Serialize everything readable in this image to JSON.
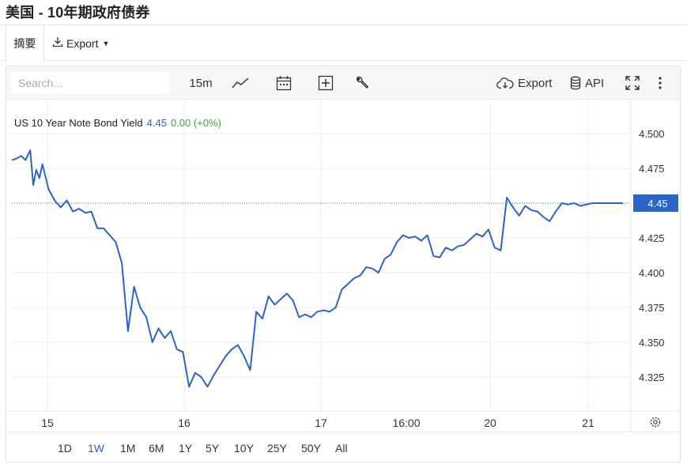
{
  "header": {
    "title": "美国 - 10年期政府债券"
  },
  "tabs": {
    "summary": "摘要",
    "export": "Export"
  },
  "toolbar": {
    "search_placeholder": "Search...",
    "interval": "15m",
    "export_label": "Export",
    "api_label": "API"
  },
  "legend": {
    "name": "US 10 Year Note Bond Yield",
    "value": "4.45",
    "change": "0.00 (+0%)"
  },
  "price_tag": "4.45",
  "ranges": [
    "1D",
    "1W",
    "1M",
    "6M",
    "1Y",
    "5Y",
    "10Y",
    "25Y",
    "50Y",
    "All"
  ],
  "active_range": "1W",
  "colors": {
    "line": "#2a64c8",
    "accent": "#2a64c8",
    "change_positive": "#2fae2f",
    "price_tag_bg": "#2a64c8"
  },
  "icons": [
    "line-chart-icon",
    "calendar-icon",
    "plus-box-icon",
    "wrench-icon",
    "cloud-download-icon",
    "database-icon",
    "fullscreen-icon",
    "kebab-menu-icon",
    "gear-icon",
    "download-icon"
  ],
  "chart_data": {
    "type": "line",
    "title": "",
    "xlabel": "",
    "ylabel": "",
    "ylim": [
      4.3,
      4.52
    ],
    "yticks": [
      "4.500",
      "4.475",
      "4.450",
      "4.425",
      "4.400",
      "4.375",
      "4.350",
      "4.325"
    ],
    "xticks": [
      "15",
      "16",
      "17",
      "16:00",
      "20",
      "21"
    ],
    "grid": true,
    "reference_line": 4.45,
    "series": [
      {
        "name": "US 10 Year Note Bond Yield",
        "t": [
          0,
          0.3,
          0.6,
          0.9,
          1.2,
          1.4,
          1.6,
          1.8,
          2.0,
          2.4,
          2.8,
          3.2,
          3.6,
          4.0,
          4.4,
          4.8,
          5.2,
          5.6,
          6.0,
          6.4,
          6.8,
          7.2,
          7.6,
          8.0,
          8.4,
          8.8,
          9.2,
          9.6,
          10.0,
          10.4,
          10.8,
          11.2,
          11.6,
          12.0,
          12.4,
          12.8,
          13.2,
          13.6,
          14.0,
          14.4,
          14.8,
          15.2,
          15.6,
          16.0,
          16.4,
          16.8,
          17.2,
          17.6,
          18.0,
          18.4,
          18.8,
          19.2,
          19.6,
          20.0,
          20.4,
          20.8,
          21.2,
          21.6,
          22.0,
          22.4,
          22.8,
          23.2,
          23.6,
          24.0,
          24.4,
          24.8,
          25.2,
          25.6,
          26.0,
          26.4,
          26.8,
          27.2,
          27.6,
          28.0,
          28.4,
          28.8,
          29.2,
          29.6,
          30.0,
          30.4,
          30.8,
          31.2,
          31.6,
          32.0,
          32.4,
          32.8,
          33.2,
          33.6,
          34.0,
          34.4,
          34.8,
          35.2,
          35.6,
          36.0,
          36.4,
          36.8,
          37.2,
          37.6,
          38.0,
          38.4,
          38.8,
          39.2,
          39.6,
          40.0
        ],
        "values": [
          4.481,
          4.482,
          4.484,
          4.481,
          4.488,
          4.463,
          4.474,
          4.468,
          4.478,
          4.46,
          4.452,
          4.447,
          4.452,
          4.444,
          4.446,
          4.443,
          4.444,
          4.432,
          4.432,
          4.427,
          4.422,
          4.407,
          4.358,
          4.39,
          4.375,
          4.368,
          4.35,
          4.36,
          4.353,
          4.358,
          4.345,
          4.343,
          4.318,
          4.328,
          4.325,
          4.318,
          4.326,
          4.333,
          4.34,
          4.345,
          4.348,
          4.34,
          4.33,
          4.372,
          4.367,
          4.383,
          4.377,
          4.381,
          4.385,
          4.38,
          4.368,
          4.37,
          4.368,
          4.372,
          4.373,
          4.372,
          4.375,
          4.388,
          4.392,
          4.396,
          4.398,
          4.404,
          4.403,
          4.4,
          4.41,
          4.413,
          4.422,
          4.427,
          4.425,
          4.426,
          4.423,
          4.427,
          4.412,
          4.411,
          4.418,
          4.416,
          4.419,
          4.42,
          4.424,
          4.428,
          4.426,
          4.431,
          4.418,
          4.416,
          4.454,
          4.447,
          4.441,
          4.448,
          4.445,
          4.444,
          4.44,
          4.437,
          4.444,
          4.45,
          4.449,
          4.45,
          4.448,
          4.449,
          4.45,
          4.45,
          4.45,
          4.45,
          4.45,
          4.45
        ]
      }
    ]
  }
}
